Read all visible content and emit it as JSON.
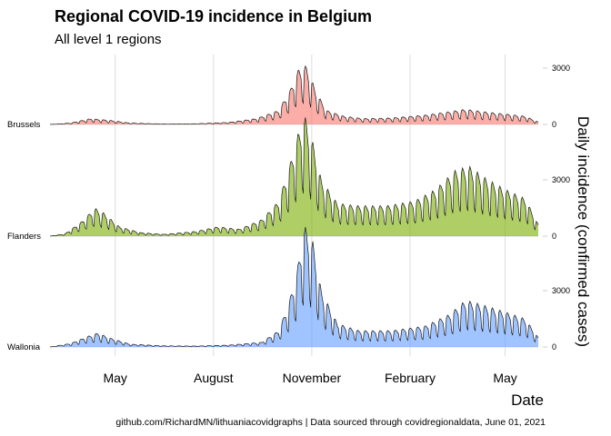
{
  "title": "Regional COVID-19 incidence in Belgium",
  "subtitle": "All level 1 regions",
  "caption": "github.com/RichardMN/lithuaniacovidgraphs | Data sourced through covidregionaldata, June 01, 2021",
  "chart_data": {
    "type": "area",
    "title": "Regional COVID-19 incidence in Belgium",
    "subtitle": "All level 1 regions",
    "xlabel": "Date",
    "ylabel": "Daily incidence (confirmed cases)",
    "xlim": [
      "2020-03-01",
      "2021-06-01"
    ],
    "x_ticks": [
      {
        "date": "2020-05-01",
        "label": "May"
      },
      {
        "date": "2020-08-01",
        "label": "August"
      },
      {
        "date": "2020-11-01",
        "label": "November"
      },
      {
        "date": "2021-02-01",
        "label": "February"
      },
      {
        "date": "2021-05-01",
        "label": "May"
      }
    ],
    "y_ticks": [
      0,
      3000
    ],
    "ylim_per_panel": [
      0,
      3000
    ],
    "ridge_overlap": true,
    "weekly_cycle": true,
    "grid": "vertical",
    "series": [
      {
        "name": "Brussels",
        "color": "#F8766D",
        "points": [
          [
            "2020-03-01",
            0
          ],
          [
            "2020-03-20",
            60
          ],
          [
            "2020-04-08",
            250
          ],
          [
            "2020-04-25",
            180
          ],
          [
            "2020-05-15",
            60
          ],
          [
            "2020-06-15",
            20
          ],
          [
            "2020-07-15",
            30
          ],
          [
            "2020-08-15",
            90
          ],
          [
            "2020-09-10",
            250
          ],
          [
            "2020-10-01",
            600
          ],
          [
            "2020-10-12",
            1500
          ],
          [
            "2020-10-20",
            2400
          ],
          [
            "2020-10-27",
            2500
          ],
          [
            "2020-11-05",
            1400
          ],
          [
            "2020-11-15",
            600
          ],
          [
            "2020-12-01",
            350
          ],
          [
            "2020-12-20",
            250
          ],
          [
            "2021-01-15",
            280
          ],
          [
            "2021-02-15",
            400
          ],
          [
            "2021-03-10",
            550
          ],
          [
            "2021-03-25",
            650
          ],
          [
            "2021-04-10",
            550
          ],
          [
            "2021-05-01",
            450
          ],
          [
            "2021-05-20",
            350
          ],
          [
            "2021-06-01",
            100
          ]
        ]
      },
      {
        "name": "Flanders",
        "color": "#7CAE00",
        "points": [
          [
            "2020-03-01",
            0
          ],
          [
            "2020-03-15",
            100
          ],
          [
            "2020-03-30",
            600
          ],
          [
            "2020-04-12",
            1200
          ],
          [
            "2020-04-20",
            1000
          ],
          [
            "2020-05-05",
            400
          ],
          [
            "2020-05-25",
            150
          ],
          [
            "2020-06-15",
            80
          ],
          [
            "2020-07-15",
            200
          ],
          [
            "2020-08-05",
            400
          ],
          [
            "2020-08-25",
            300
          ],
          [
            "2020-09-15",
            700
          ],
          [
            "2020-10-01",
            1500
          ],
          [
            "2020-10-10",
            2800
          ],
          [
            "2020-10-18",
            4200
          ],
          [
            "2020-10-25",
            5200
          ],
          [
            "2020-11-01",
            4200
          ],
          [
            "2020-11-10",
            2400
          ],
          [
            "2020-11-25",
            1400
          ],
          [
            "2020-12-15",
            1300
          ],
          [
            "2021-01-10",
            1300
          ],
          [
            "2021-02-05",
            1500
          ],
          [
            "2021-02-25",
            2000
          ],
          [
            "2021-03-15",
            2800
          ],
          [
            "2021-03-28",
            3000
          ],
          [
            "2021-04-12",
            2500
          ],
          [
            "2021-05-01",
            2000
          ],
          [
            "2021-05-20",
            1600
          ],
          [
            "2021-06-01",
            500
          ]
        ]
      },
      {
        "name": "Wallonia",
        "color": "#619CFF",
        "points": [
          [
            "2020-03-01",
            0
          ],
          [
            "2020-03-20",
            150
          ],
          [
            "2020-04-05",
            450
          ],
          [
            "2020-04-15",
            600
          ],
          [
            "2020-04-25",
            400
          ],
          [
            "2020-05-15",
            120
          ],
          [
            "2020-06-15",
            50
          ],
          [
            "2020-07-15",
            40
          ],
          [
            "2020-08-15",
            80
          ],
          [
            "2020-09-15",
            200
          ],
          [
            "2020-10-01",
            700
          ],
          [
            "2020-10-10",
            1800
          ],
          [
            "2020-10-18",
            3200
          ],
          [
            "2020-10-25",
            5200
          ],
          [
            "2020-11-02",
            4500
          ],
          [
            "2020-11-10",
            2400
          ],
          [
            "2020-11-25",
            1000
          ],
          [
            "2020-12-15",
            700
          ],
          [
            "2021-01-15",
            700
          ],
          [
            "2021-02-15",
            900
          ],
          [
            "2021-03-10",
            1400
          ],
          [
            "2021-03-25",
            2000
          ],
          [
            "2021-04-10",
            1800
          ],
          [
            "2021-05-01",
            1500
          ],
          [
            "2021-05-20",
            1200
          ],
          [
            "2021-06-01",
            400
          ]
        ]
      }
    ]
  }
}
